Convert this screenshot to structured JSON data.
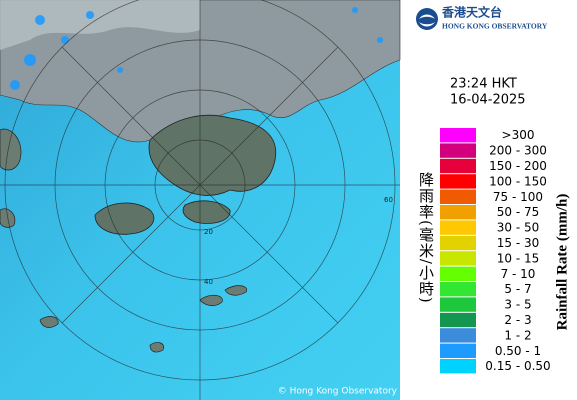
{
  "logo": {
    "chinese": "香港天文台",
    "english": "HONG KONG OBSERVATORY"
  },
  "time": "23:24 HKT",
  "date": "16-04-2025",
  "legend": {
    "title_chinese": "降雨率(毫米/小時)",
    "title_english": "Rainfall Rate (mm/h)",
    "items": [
      {
        "label": ">300",
        "color": "#ff00ff"
      },
      {
        "label": "200 - 300",
        "color": "#d2007d"
      },
      {
        "label": "150 - 200",
        "color": "#e6003c"
      },
      {
        "label": "100 - 150",
        "color": "#ff0000"
      },
      {
        "label": "75 - 100",
        "color": "#f05a00"
      },
      {
        "label": "50 - 75",
        "color": "#f0a000"
      },
      {
        "label": "30 - 50",
        "color": "#ffc800"
      },
      {
        "label": "15 - 30",
        "color": "#e1d200"
      },
      {
        "label": "10 - 15",
        "color": "#c8e600"
      },
      {
        "label": "7 - 10",
        "color": "#64ff00"
      },
      {
        "label": "5 - 7",
        "color": "#32e632"
      },
      {
        "label": "3 - 5",
        "color": "#1ec83c"
      },
      {
        "label": "2 - 3",
        "color": "#149650"
      },
      {
        "label": "1 - 2",
        "color": "#3c8cdc"
      },
      {
        "label": "0.50 - 1",
        "color": "#1e9bff"
      },
      {
        "label": "0.15 - 0.50",
        "color": "#00d2ff"
      }
    ]
  },
  "rings": [
    "20",
    "40",
    "60"
  ],
  "copyright": "© Hong Kong Observatory"
}
